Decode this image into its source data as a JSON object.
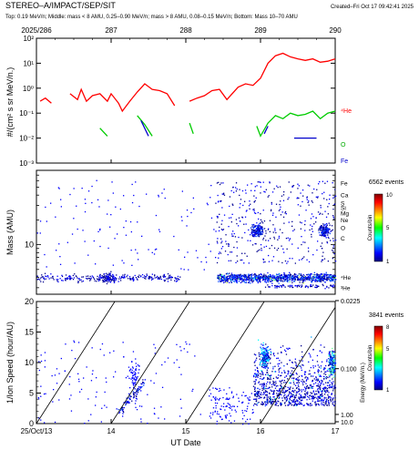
{
  "header": {
    "title": "STEREO–A/IMPACT/SEP/SIT",
    "created": "Created–Fri Oct 17 09:42:41 2025",
    "subtitle": "Top: 0.19 MeV/n; Middle: mass < 8 AMU, 0.25–0.90 MeV/n; mass > 8 AMU, 0.08–0.15 MeV/n; Bottom: Mass 10–70 AMU"
  },
  "chart_data": [
    {
      "type": "line",
      "panel": "top",
      "top_ticks": [
        "2025/286",
        "287",
        "288",
        "289",
        "290"
      ],
      "ylabel": "#/(cm² s sr MeV/n.)",
      "yscale": "log",
      "ylim": [
        0.001,
        100
      ],
      "ytick_labels": [
        "10⁻³",
        "10⁻²",
        "10⁻¹",
        "10⁰",
        "10¹",
        "10²"
      ],
      "xlim": [
        0,
        4
      ],
      "series": [
        {
          "name": "⁴He",
          "color": "#ff0000",
          "points": [
            [
              0.05,
              0.3
            ],
            [
              0.12,
              0.4
            ],
            [
              0.2,
              0.25
            ],
            [
              0.45,
              0.6
            ],
            [
              0.55,
              0.35
            ],
            [
              0.6,
              0.9
            ],
            [
              0.67,
              0.3
            ],
            [
              0.75,
              0.5
            ],
            [
              0.85,
              0.6
            ],
            [
              0.95,
              0.3
            ],
            [
              1.0,
              0.6
            ],
            [
              1.1,
              0.25
            ],
            [
              1.15,
              0.12
            ],
            [
              1.25,
              0.3
            ],
            [
              1.35,
              0.7
            ],
            [
              1.45,
              1.5
            ],
            [
              1.55,
              0.9
            ],
            [
              1.65,
              0.8
            ],
            [
              1.75,
              0.6
            ],
            [
              1.85,
              0.2
            ],
            [
              2.05,
              0.3
            ],
            [
              2.15,
              0.4
            ],
            [
              2.25,
              0.5
            ],
            [
              2.35,
              0.8
            ],
            [
              2.45,
              0.9
            ],
            [
              2.55,
              0.35
            ],
            [
              2.7,
              1.1
            ],
            [
              2.8,
              1.5
            ],
            [
              2.9,
              1.3
            ],
            [
              3.0,
              2.5
            ],
            [
              3.1,
              10
            ],
            [
              3.2,
              20
            ],
            [
              3.3,
              25
            ],
            [
              3.4,
              18
            ],
            [
              3.5,
              15
            ],
            [
              3.6,
              13
            ],
            [
              3.7,
              15
            ],
            [
              3.8,
              11
            ],
            [
              3.9,
              12
            ],
            [
              4.0,
              15
            ]
          ]
        },
        {
          "name": "O",
          "color": "#00cc00",
          "points": [
            [
              0.85,
              0.025
            ],
            [
              0.95,
              0.012
            ],
            [
              1.35,
              0.08
            ],
            [
              1.45,
              0.035
            ],
            [
              1.55,
              0.012
            ],
            [
              2.05,
              0.04
            ],
            [
              2.1,
              0.015
            ],
            [
              2.95,
              0.03
            ],
            [
              3.0,
              0.012
            ],
            [
              3.1,
              0.04
            ],
            [
              3.2,
              0.08
            ],
            [
              3.3,
              0.06
            ],
            [
              3.4,
              0.1
            ],
            [
              3.5,
              0.08
            ],
            [
              3.6,
              0.09
            ],
            [
              3.7,
              0.12
            ],
            [
              3.8,
              0.06
            ],
            [
              3.9,
              0.1
            ],
            [
              4.0,
              0.12
            ]
          ]
        },
        {
          "name": "Fe",
          "color": "#0000cc",
          "points": [
            [
              1.4,
              0.05
            ],
            [
              1.5,
              0.012
            ],
            [
              3.05,
              0.015
            ],
            [
              3.1,
              0.03
            ],
            [
              3.45,
              0.01
            ],
            [
              3.6,
              0.01
            ],
            [
              3.75,
              0.01
            ]
          ]
        }
      ]
    },
    {
      "type": "scatter",
      "panel": "middle",
      "ylabel": "Mass (AMU)",
      "yscale": "log",
      "ylim": [
        2.5,
        80
      ],
      "ytick_labels": [
        "10"
      ],
      "right_labels": [
        "Fe",
        "Ca",
        "S",
        "Si",
        "Mg",
        "Ne",
        "O",
        "C",
        "⁴He",
        "³He"
      ],
      "events_label": "6562 events",
      "colorbar": {
        "label": "Counts/bin",
        "min": 1,
        "max": 10,
        "ticks": [
          "10",
          "5",
          "1"
        ]
      }
    },
    {
      "type": "scatter",
      "panel": "bottom",
      "ylabel": "1/Ion Speed (hour/AU)",
      "xlabel": "UT Date",
      "xtick_labels": [
        "25/Oct/13",
        "14",
        "15",
        "16",
        "17"
      ],
      "xlim": [
        13,
        17
      ],
      "ylim": [
        0,
        20
      ],
      "ytick_labels": [
        "0",
        "5",
        "10",
        "15",
        "20"
      ],
      "right_axis_label": "Energy (MeV/n.)",
      "right_tick_labels": [
        "0.0225",
        "0.100",
        "1.00",
        "10.0"
      ],
      "events_label": "3841 events",
      "colorbar": {
        "label": "Counts/bin",
        "min": 1,
        "max": 8,
        "ticks": [
          "8",
          "5",
          "1"
        ]
      }
    }
  ]
}
